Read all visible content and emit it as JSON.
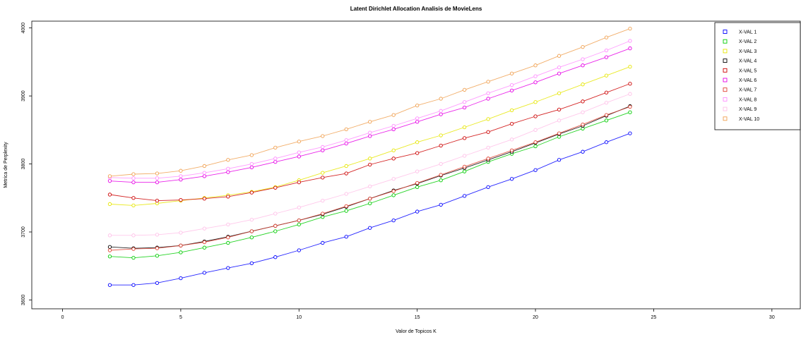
{
  "chart_data": {
    "type": "line",
    "title": "Latent Dirichlet Allocation Analisis de MovieLens",
    "xlabel": "Valor de Topicos K",
    "ylabel": "Metrica de Perplexity",
    "xlim": [
      -1.3,
      31.2
    ],
    "ylim": [
      3587,
      4010
    ],
    "xticks": [
      0,
      5,
      10,
      15,
      20,
      25,
      30
    ],
    "yticks": [
      3600,
      3700,
      3800,
      3900,
      4000
    ],
    "legend_position": "top-right",
    "x": [
      2,
      3,
      4,
      5,
      6,
      7,
      8,
      9,
      10,
      11,
      12,
      13,
      14,
      15,
      16,
      17,
      18,
      19,
      20,
      21,
      22,
      23,
      24
    ],
    "series": [
      {
        "name": "X-VAL 1",
        "color": "#0000ff",
        "values": [
          3622,
          3622,
          3625,
          3632,
          3640,
          3647,
          3654,
          3663,
          3673,
          3684,
          3693,
          3706,
          3717,
          3730,
          3740,
          3753,
          3766,
          3778,
          3791,
          3806,
          3818,
          3832,
          3845
        ]
      },
      {
        "name": "X-VAL 2",
        "color": "#00cc00",
        "values": [
          3664,
          3662,
          3665,
          3670,
          3677,
          3684,
          3692,
          3701,
          3711,
          3722,
          3731,
          3742,
          3754,
          3766,
          3776,
          3789,
          3803,
          3815,
          3826,
          3840,
          3852,
          3864,
          3876
        ]
      },
      {
        "name": "X-VAL 3",
        "color": "#e6e600",
        "values": [
          3741,
          3739,
          3742,
          3746,
          3750,
          3754,
          3759,
          3766,
          3776,
          3787,
          3797,
          3808,
          3820,
          3832,
          3842,
          3854,
          3866,
          3879,
          3891,
          3904,
          3917,
          3930,
          3943
        ]
      },
      {
        "name": "X-VAL 4",
        "color": "#000000",
        "values": [
          3678,
          3676,
          3677,
          3680,
          3686,
          3693,
          3701,
          3709,
          3717,
          3726,
          3737,
          3749,
          3761,
          3771,
          3783,
          3794,
          3806,
          3818,
          3831,
          3844,
          3856,
          3871,
          3885
        ]
      },
      {
        "name": "X-VAL 5",
        "color": "#cc0000",
        "values": [
          3755,
          3750,
          3746,
          3747,
          3749,
          3752,
          3758,
          3765,
          3773,
          3780,
          3786,
          3799,
          3808,
          3816,
          3827,
          3838,
          3847,
          3859,
          3870,
          3880,
          3892,
          3905,
          3918
        ]
      },
      {
        "name": "X-VAL 6",
        "color": "#e600e6",
        "values": [
          3775,
          3773,
          3773,
          3777,
          3782,
          3788,
          3795,
          3803,
          3811,
          3820,
          3830,
          3841,
          3851,
          3862,
          3873,
          3883,
          3896,
          3908,
          3920,
          3933,
          3945,
          3957,
          3970
        ]
      },
      {
        "name": "X-VAL 7",
        "color": "#e04030",
        "values": [
          3673,
          3675,
          3676,
          3680,
          3685,
          3692,
          3701,
          3709,
          3717,
          3727,
          3738,
          3749,
          3760,
          3772,
          3784,
          3796,
          3808,
          3820,
          3832,
          3845,
          3858,
          3872,
          3884
        ]
      },
      {
        "name": "X-VAL 8",
        "color": "#ff8cff",
        "values": [
          3780,
          3779,
          3779,
          3782,
          3787,
          3793,
          3800,
          3808,
          3817,
          3825,
          3835,
          3846,
          3856,
          3867,
          3878,
          3891,
          3904,
          3916,
          3929,
          3942,
          3954,
          3967,
          3981
        ]
      },
      {
        "name": "X-VAL 9",
        "color": "#ffc0e8",
        "values": [
          3695,
          3695,
          3696,
          3699,
          3705,
          3711,
          3718,
          3727,
          3736,
          3746,
          3756,
          3767,
          3778,
          3789,
          3800,
          3812,
          3824,
          3836,
          3850,
          3864,
          3876,
          3890,
          3903
        ]
      },
      {
        "name": "X-VAL 10",
        "color": "#f0a050",
        "values": [
          3782,
          3785,
          3786,
          3790,
          3797,
          3806,
          3813,
          3824,
          3833,
          3841,
          3851,
          3862,
          3872,
          3886,
          3896,
          3909,
          3921,
          3933,
          3945,
          3959,
          3972,
          3986,
          3999
        ]
      }
    ]
  }
}
